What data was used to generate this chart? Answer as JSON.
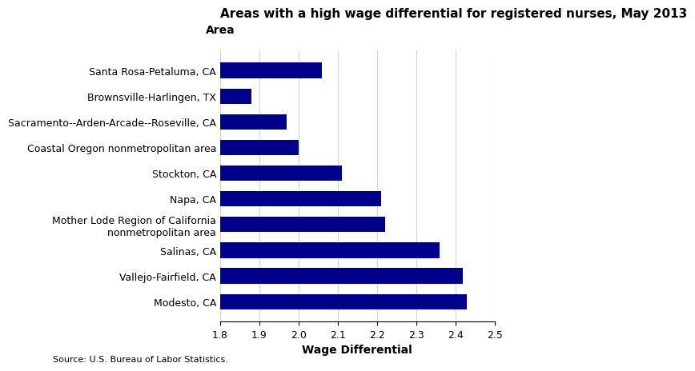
{
  "title": "Areas with a high wage differential for registered nurses, May 2013",
  "categories": [
    "Modesto, CA",
    "Vallejo-Fairfield, CA",
    "Salinas, CA",
    "Mother Lode Region of California\nnonmetropolitan area",
    "Napa, CA",
    "Stockton, CA",
    "Coastal Oregon nonmetropolitan area",
    "Sacramento--Arden-Arcade--Roseville, CA",
    "Brownsville-Harlingen, TX",
    "Santa Rosa-Petaluma, CA"
  ],
  "values": [
    2.43,
    2.42,
    2.36,
    2.22,
    2.21,
    2.11,
    2.0,
    1.97,
    1.88,
    2.06
  ],
  "bar_color": "#00008B",
  "xlabel": "Wage Differential",
  "ylabel": "Area",
  "xlim": [
    1.8,
    2.5
  ],
  "xticks": [
    1.8,
    1.9,
    2.0,
    2.1,
    2.2,
    2.3,
    2.4,
    2.5
  ],
  "source_text": "Source: U.S. Bureau of Labor Statistics.",
  "title_fontsize": 11,
  "label_fontsize": 9,
  "tick_fontsize": 9,
  "source_fontsize": 8
}
